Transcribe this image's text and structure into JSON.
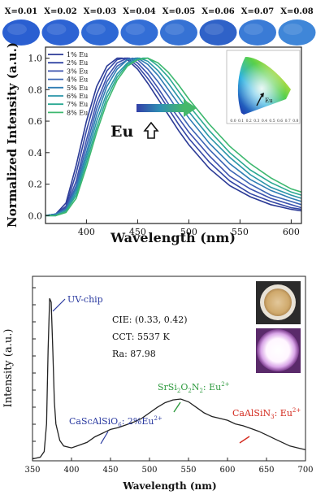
{
  "chart_data": [
    {
      "type": "line",
      "panel": "top",
      "sample_labels": [
        "X=0.01",
        "X=0.02",
        "X=0.03",
        "X=0.04",
        "X=0.05",
        "X=0.06",
        "X=0.07",
        "X=0.08"
      ],
      "xlabel": "Wavelength (nm)",
      "ylabel": "Normalized Intensity (a.u.)",
      "xlim": [
        360,
        610
      ],
      "ylim": [
        -0.05,
        1.07
      ],
      "x_ticks": [
        400,
        450,
        500,
        550,
        600
      ],
      "y_ticks": [
        0.0,
        0.2,
        0.4,
        0.6,
        0.8,
        1.0
      ],
      "legend_position": "top-left",
      "annotation": "Eu",
      "inset": {
        "type": "CIE chromaticity diagram",
        "x_ticks": [
          "0.0",
          "0.1",
          "0.2",
          "0.3",
          "0.4",
          "0.5",
          "0.6",
          "0.7",
          "0.8"
        ],
        "label": "Eu"
      },
      "series": [
        {
          "name": "1% Eu",
          "color": "#2b3a96",
          "x": [
            360,
            370,
            380,
            390,
            400,
            410,
            420,
            430,
            435,
            440,
            450,
            460,
            470,
            480,
            490,
            500,
            520,
            540,
            560,
            580,
            600,
            610
          ],
          "y": [
            0.0,
            0.01,
            0.08,
            0.32,
            0.6,
            0.82,
            0.95,
            1.0,
            1.0,
            0.99,
            0.93,
            0.84,
            0.74,
            0.64,
            0.54,
            0.45,
            0.3,
            0.19,
            0.12,
            0.07,
            0.04,
            0.03
          ]
        },
        {
          "name": "2% Eu",
          "color": "#3346a4",
          "x": [
            360,
            370,
            380,
            390,
            400,
            410,
            420,
            430,
            437,
            440,
            450,
            460,
            470,
            480,
            490,
            500,
            520,
            540,
            560,
            580,
            600,
            610
          ],
          "y": [
            0.0,
            0.01,
            0.06,
            0.27,
            0.54,
            0.77,
            0.92,
            0.99,
            1.0,
            1.0,
            0.95,
            0.87,
            0.78,
            0.68,
            0.58,
            0.49,
            0.34,
            0.22,
            0.14,
            0.09,
            0.05,
            0.04
          ]
        },
        {
          "name": "3% Eu",
          "color": "#3c52ae",
          "x": [
            360,
            370,
            380,
            390,
            400,
            410,
            420,
            430,
            440,
            442,
            450,
            460,
            470,
            480,
            490,
            500,
            520,
            540,
            560,
            580,
            600,
            610
          ],
          "y": [
            0.0,
            0.01,
            0.05,
            0.22,
            0.48,
            0.72,
            0.88,
            0.97,
            1.0,
            1.0,
            0.97,
            0.9,
            0.81,
            0.71,
            0.62,
            0.53,
            0.38,
            0.25,
            0.17,
            0.11,
            0.07,
            0.05
          ]
        },
        {
          "name": "4% Eu",
          "color": "#3a64b4",
          "x": [
            360,
            370,
            380,
            390,
            400,
            410,
            420,
            430,
            440,
            445,
            450,
            460,
            470,
            480,
            490,
            500,
            520,
            540,
            560,
            580,
            600,
            610
          ],
          "y": [
            0.0,
            0.01,
            0.04,
            0.19,
            0.44,
            0.68,
            0.85,
            0.95,
            0.99,
            1.0,
            0.99,
            0.93,
            0.85,
            0.76,
            0.66,
            0.57,
            0.42,
            0.29,
            0.2,
            0.13,
            0.09,
            0.07
          ]
        },
        {
          "name": "5% Eu",
          "color": "#2f7db4",
          "x": [
            360,
            370,
            380,
            390,
            400,
            410,
            420,
            430,
            440,
            448,
            450,
            460,
            470,
            480,
            490,
            500,
            520,
            540,
            560,
            580,
            600,
            610
          ],
          "y": [
            0.0,
            0.01,
            0.04,
            0.17,
            0.4,
            0.64,
            0.82,
            0.93,
            0.99,
            1.0,
            1.0,
            0.96,
            0.89,
            0.8,
            0.71,
            0.62,
            0.46,
            0.33,
            0.23,
            0.16,
            0.11,
            0.09
          ]
        },
        {
          "name": "6% Eu",
          "color": "#2a95a8",
          "x": [
            360,
            370,
            380,
            390,
            400,
            410,
            420,
            430,
            440,
            450,
            452,
            460,
            470,
            480,
            490,
            500,
            520,
            540,
            560,
            580,
            600,
            610
          ],
          "y": [
            0.0,
            0.0,
            0.03,
            0.15,
            0.37,
            0.6,
            0.78,
            0.9,
            0.97,
            1.0,
            1.0,
            0.98,
            0.92,
            0.84,
            0.75,
            0.66,
            0.5,
            0.37,
            0.26,
            0.18,
            0.13,
            0.11
          ]
        },
        {
          "name": "7% Eu",
          "color": "#2aa892",
          "x": [
            360,
            370,
            380,
            390,
            400,
            410,
            420,
            430,
            440,
            450,
            455,
            460,
            470,
            480,
            490,
            500,
            520,
            540,
            560,
            580,
            600,
            610
          ],
          "y": [
            0.0,
            0.0,
            0.03,
            0.13,
            0.34,
            0.56,
            0.75,
            0.88,
            0.96,
            0.99,
            1.0,
            1.0,
            0.95,
            0.88,
            0.79,
            0.7,
            0.54,
            0.4,
            0.29,
            0.21,
            0.15,
            0.13
          ]
        },
        {
          "name": "8% Eu",
          "color": "#3db86f",
          "x": [
            360,
            370,
            380,
            390,
            400,
            410,
            420,
            430,
            440,
            450,
            460,
            470,
            480,
            490,
            500,
            520,
            540,
            560,
            580,
            600,
            610
          ],
          "y": [
            0.0,
            0.0,
            0.02,
            0.11,
            0.31,
            0.53,
            0.72,
            0.86,
            0.95,
            0.99,
            1.0,
            0.97,
            0.91,
            0.83,
            0.74,
            0.58,
            0.44,
            0.33,
            0.24,
            0.17,
            0.15
          ]
        }
      ]
    },
    {
      "type": "line",
      "panel": "bottom",
      "xlabel": "Wavelength (nm)",
      "ylabel": "Intensity (a.u.)",
      "xlim": [
        350,
        700
      ],
      "ylim": [
        0,
        1.0
      ],
      "x_ticks": [
        350,
        400,
        450,
        500,
        550,
        600,
        650,
        700
      ],
      "info_lines": [
        "CIE: (0.33, 0.42)",
        "CCT: 5537 K",
        "Ra: 87.98"
      ],
      "annotations": [
        "UV-chip",
        "CaScAlSiO6: 2%Eu2+",
        "SrSi2O2N2: Eu2+",
        "CaAlSiN3: Eu2+"
      ],
      "series": [
        {
          "name": "",
          "color": "#222222",
          "x": [
            350,
            360,
            365,
            368,
            370,
            372,
            374,
            376,
            378,
            380,
            385,
            390,
            400,
            410,
            420,
            430,
            440,
            450,
            460,
            470,
            480,
            490,
            500,
            510,
            520,
            530,
            540,
            550,
            560,
            570,
            580,
            590,
            600,
            610,
            620,
            630,
            640,
            650,
            660,
            670,
            680,
            690,
            700
          ],
          "y": [
            0.01,
            0.02,
            0.05,
            0.2,
            0.6,
            0.88,
            0.86,
            0.6,
            0.32,
            0.2,
            0.11,
            0.08,
            0.07,
            0.085,
            0.1,
            0.13,
            0.15,
            0.17,
            0.18,
            0.195,
            0.21,
            0.23,
            0.26,
            0.29,
            0.315,
            0.33,
            0.335,
            0.32,
            0.29,
            0.26,
            0.24,
            0.23,
            0.22,
            0.2,
            0.19,
            0.175,
            0.16,
            0.14,
            0.12,
            0.1,
            0.08,
            0.07,
            0.06
          ]
        }
      ]
    }
  ]
}
